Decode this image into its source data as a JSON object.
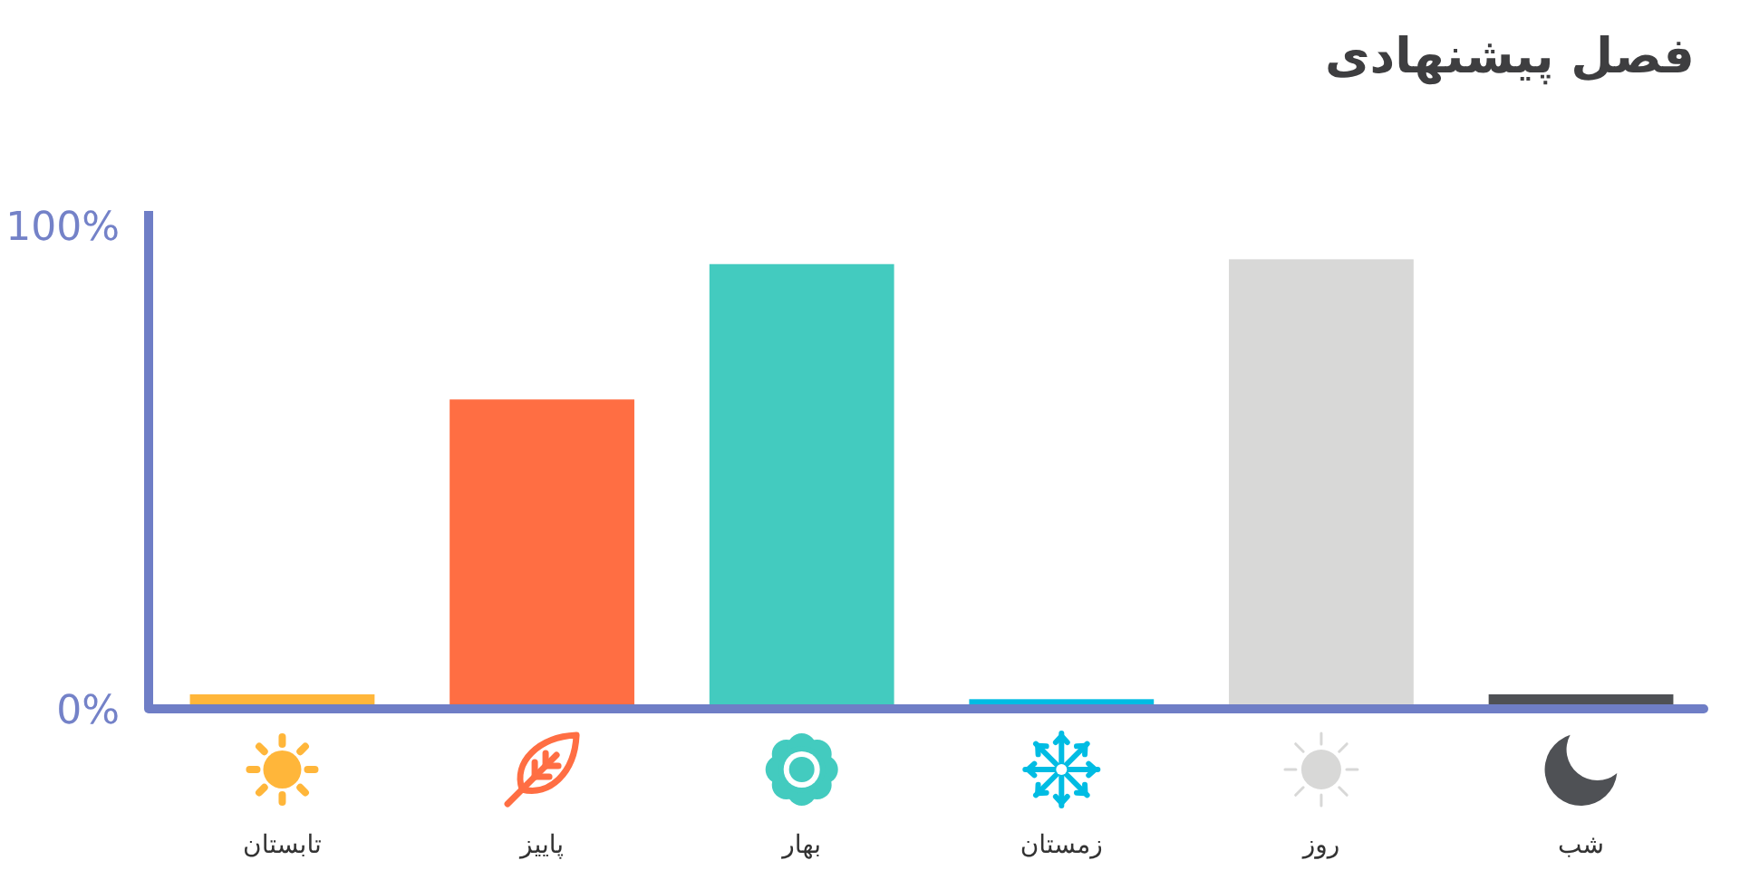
{
  "chart_data": {
    "type": "bar",
    "title": "فصل پیشنهادی",
    "categories": [
      "تابستان",
      "پاییز",
      "بهار",
      "زمستان",
      "روز",
      "شب"
    ],
    "values": [
      3,
      64,
      92,
      2,
      93,
      3
    ],
    "colors": [
      "#ffb63a",
      "#ff6e43",
      "#43cbbf",
      "#00bce3",
      "#d8d8d7",
      "#4f5155"
    ],
    "ylim": [
      0,
      103
    ],
    "yticks": [
      {
        "value": 0,
        "label": "0%"
      },
      {
        "value": 100,
        "label": "100%"
      }
    ]
  }
}
